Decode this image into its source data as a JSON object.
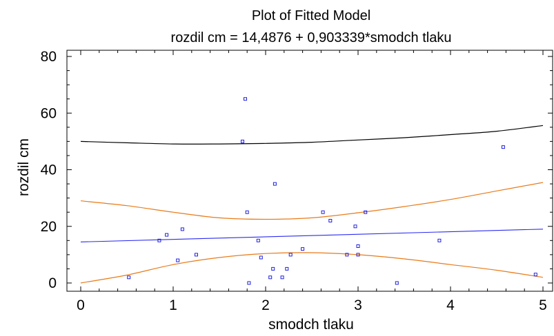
{
  "chart_data": {
    "type": "scatter",
    "title": "Plot of Fitted Model",
    "subtitle": "rozdil cm = 14,4876 + 0,903339*smodch tlaku",
    "xlabel": "smodch tlaku",
    "ylabel": "rozdil cm",
    "xlim": [
      0,
      5
    ],
    "ylim": [
      0,
      80
    ],
    "x_ticks": [
      0,
      1,
      2,
      3,
      4,
      5
    ],
    "y_ticks": [
      0,
      20,
      40,
      60,
      80
    ],
    "grid": false,
    "legend": "none",
    "colors": {
      "points": "#1f1fe0",
      "fit_line": "#2a2af0",
      "confidence_band": "#e87a18",
      "prediction_band": "#000000",
      "axes": "#000000"
    },
    "fit": {
      "intercept": 14.4876,
      "slope": 0.903339
    },
    "points": [
      {
        "x": 0.52,
        "y": 2
      },
      {
        "x": 0.85,
        "y": 15
      },
      {
        "x": 0.93,
        "y": 17
      },
      {
        "x": 1.05,
        "y": 8
      },
      {
        "x": 1.1,
        "y": 19
      },
      {
        "x": 1.25,
        "y": 10
      },
      {
        "x": 1.75,
        "y": 50
      },
      {
        "x": 1.78,
        "y": 65
      },
      {
        "x": 1.8,
        "y": 25
      },
      {
        "x": 1.82,
        "y": 0
      },
      {
        "x": 1.92,
        "y": 15
      },
      {
        "x": 1.95,
        "y": 9
      },
      {
        "x": 2.05,
        "y": 2
      },
      {
        "x": 2.08,
        "y": 5
      },
      {
        "x": 2.1,
        "y": 35
      },
      {
        "x": 2.18,
        "y": 2
      },
      {
        "x": 2.23,
        "y": 5
      },
      {
        "x": 2.27,
        "y": 10
      },
      {
        "x": 2.4,
        "y": 12
      },
      {
        "x": 2.62,
        "y": 25
      },
      {
        "x": 2.7,
        "y": 22
      },
      {
        "x": 2.88,
        "y": 10
      },
      {
        "x": 2.97,
        "y": 20
      },
      {
        "x": 3.0,
        "y": 13
      },
      {
        "x": 3.0,
        "y": 10
      },
      {
        "x": 3.08,
        "y": 25
      },
      {
        "x": 3.42,
        "y": 0
      },
      {
        "x": 3.88,
        "y": 15
      },
      {
        "x": 4.57,
        "y": 48
      },
      {
        "x": 4.92,
        "y": 3
      }
    ],
    "confidence_band": {
      "x": [
        0,
        0.5,
        1,
        1.5,
        2,
        2.5,
        3,
        3.5,
        4,
        4.5,
        5
      ],
      "upper": [
        29.0,
        27.3,
        25.0,
        23.0,
        22.5,
        23.0,
        24.8,
        27.0,
        29.5,
        32.5,
        35.5
      ],
      "lower": [
        0.0,
        2.8,
        6.5,
        9.0,
        10.4,
        10.7,
        10.0,
        8.5,
        6.5,
        4.5,
        2.0
      ]
    },
    "prediction_band": {
      "x": [
        0,
        0.5,
        1,
        1.5,
        2,
        2.5,
        3,
        3.5,
        4,
        4.5,
        5
      ],
      "upper": [
        50.0,
        49.5,
        49.1,
        49.1,
        49.3,
        49.7,
        50.5,
        51.3,
        52.4,
        53.6,
        55.6
      ]
    }
  }
}
